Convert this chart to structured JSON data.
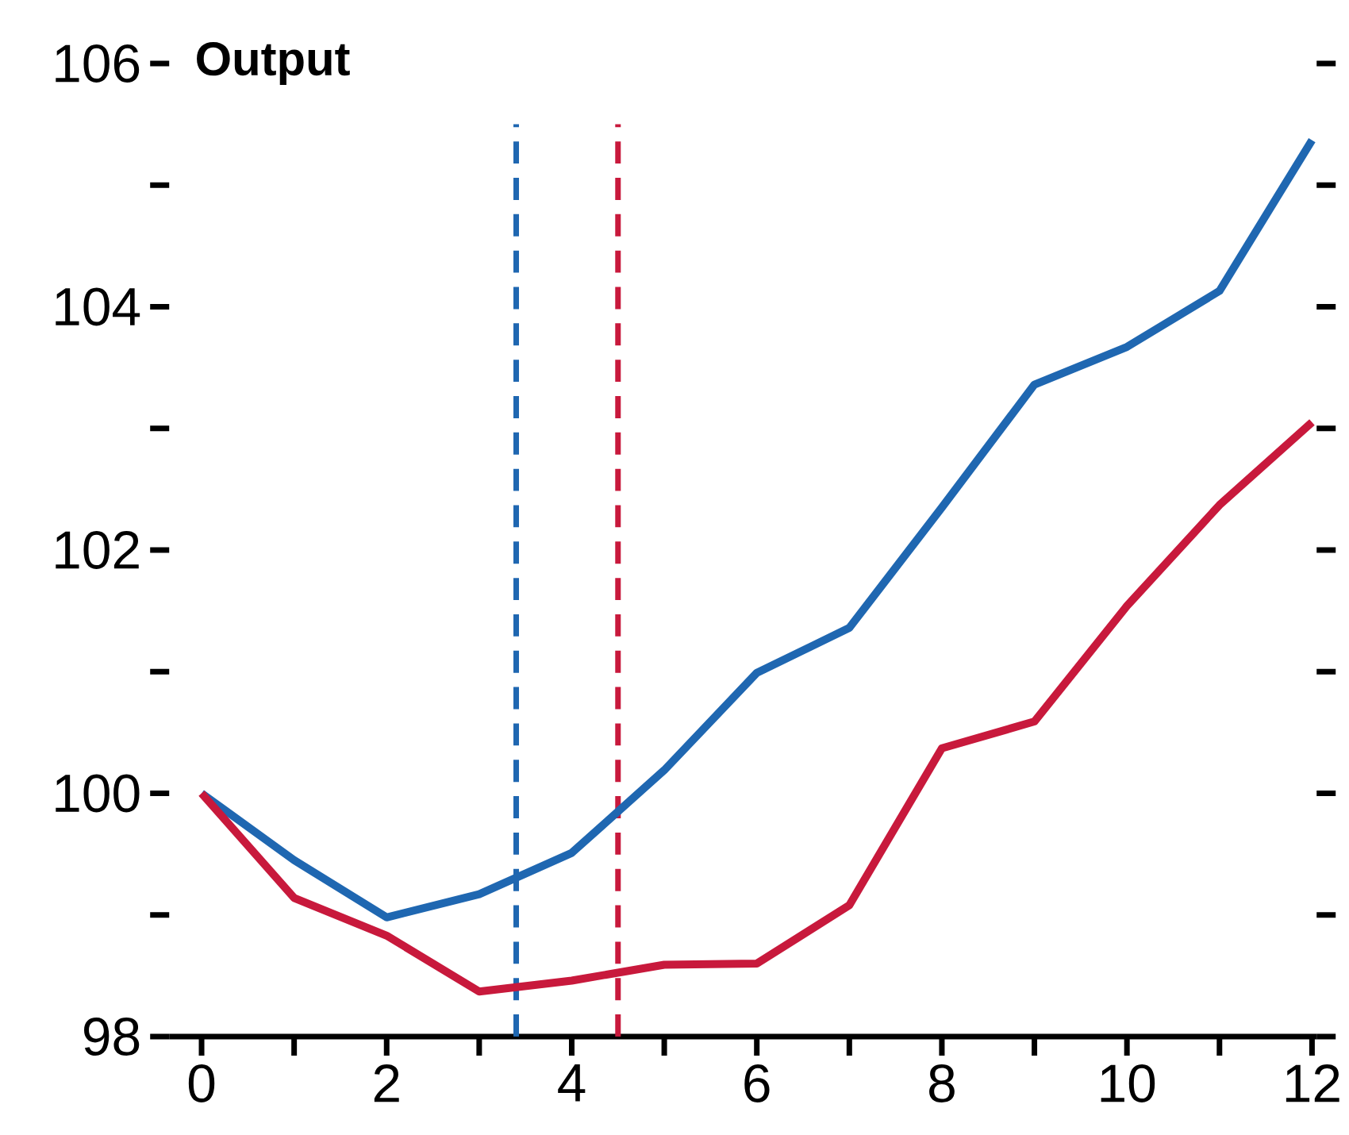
{
  "chart_data": {
    "type": "line",
    "title": "Output",
    "x": [
      0,
      1,
      2,
      3,
      4,
      5,
      6,
      7,
      8,
      9,
      10,
      11,
      12
    ],
    "series": [
      {
        "color": "#1f67b1",
        "values": [
          100,
          99.45,
          98.98,
          99.17,
          99.51,
          100.19,
          100.99,
          101.36,
          102.35,
          103.36,
          103.67,
          104.13,
          105.37
        ]
      },
      {
        "color": "#c8193c",
        "values": [
          100,
          99.14,
          98.83,
          98.37,
          98.46,
          98.59,
          98.6,
          99.08,
          100.37,
          100.59,
          101.54,
          102.37,
          103.05
        ]
      }
    ],
    "xlim": [
      -0.35,
      12.05
    ],
    "ylim": [
      98,
      106
    ],
    "xticks": [
      0,
      {
        "value": 1,
        "label": null
      },
      2,
      {
        "value": 3,
        "label": null
      },
      4,
      {
        "value": 5,
        "label": null
      },
      6,
      {
        "value": 7,
        "label": null
      },
      8,
      {
        "value": 9,
        "label": null
      },
      10,
      {
        "value": 11,
        "label": null
      },
      12
    ],
    "yticks": [
      98,
      {
        "value": 99,
        "label": null
      },
      100,
      {
        "value": 101,
        "label": null
      },
      102,
      {
        "value": 103,
        "label": null
      },
      104,
      {
        "value": 105,
        "label": null
      },
      106
    ],
    "ref_lines": [
      {
        "axis": "x",
        "value": 3.4,
        "color": "#1f67b1",
        "line_style": "dashed"
      },
      {
        "axis": "x",
        "value": 4.5,
        "color": "#c8193c",
        "line_style": "dashed"
      }
    ],
    "line_style": "solid",
    "marker": "none"
  }
}
